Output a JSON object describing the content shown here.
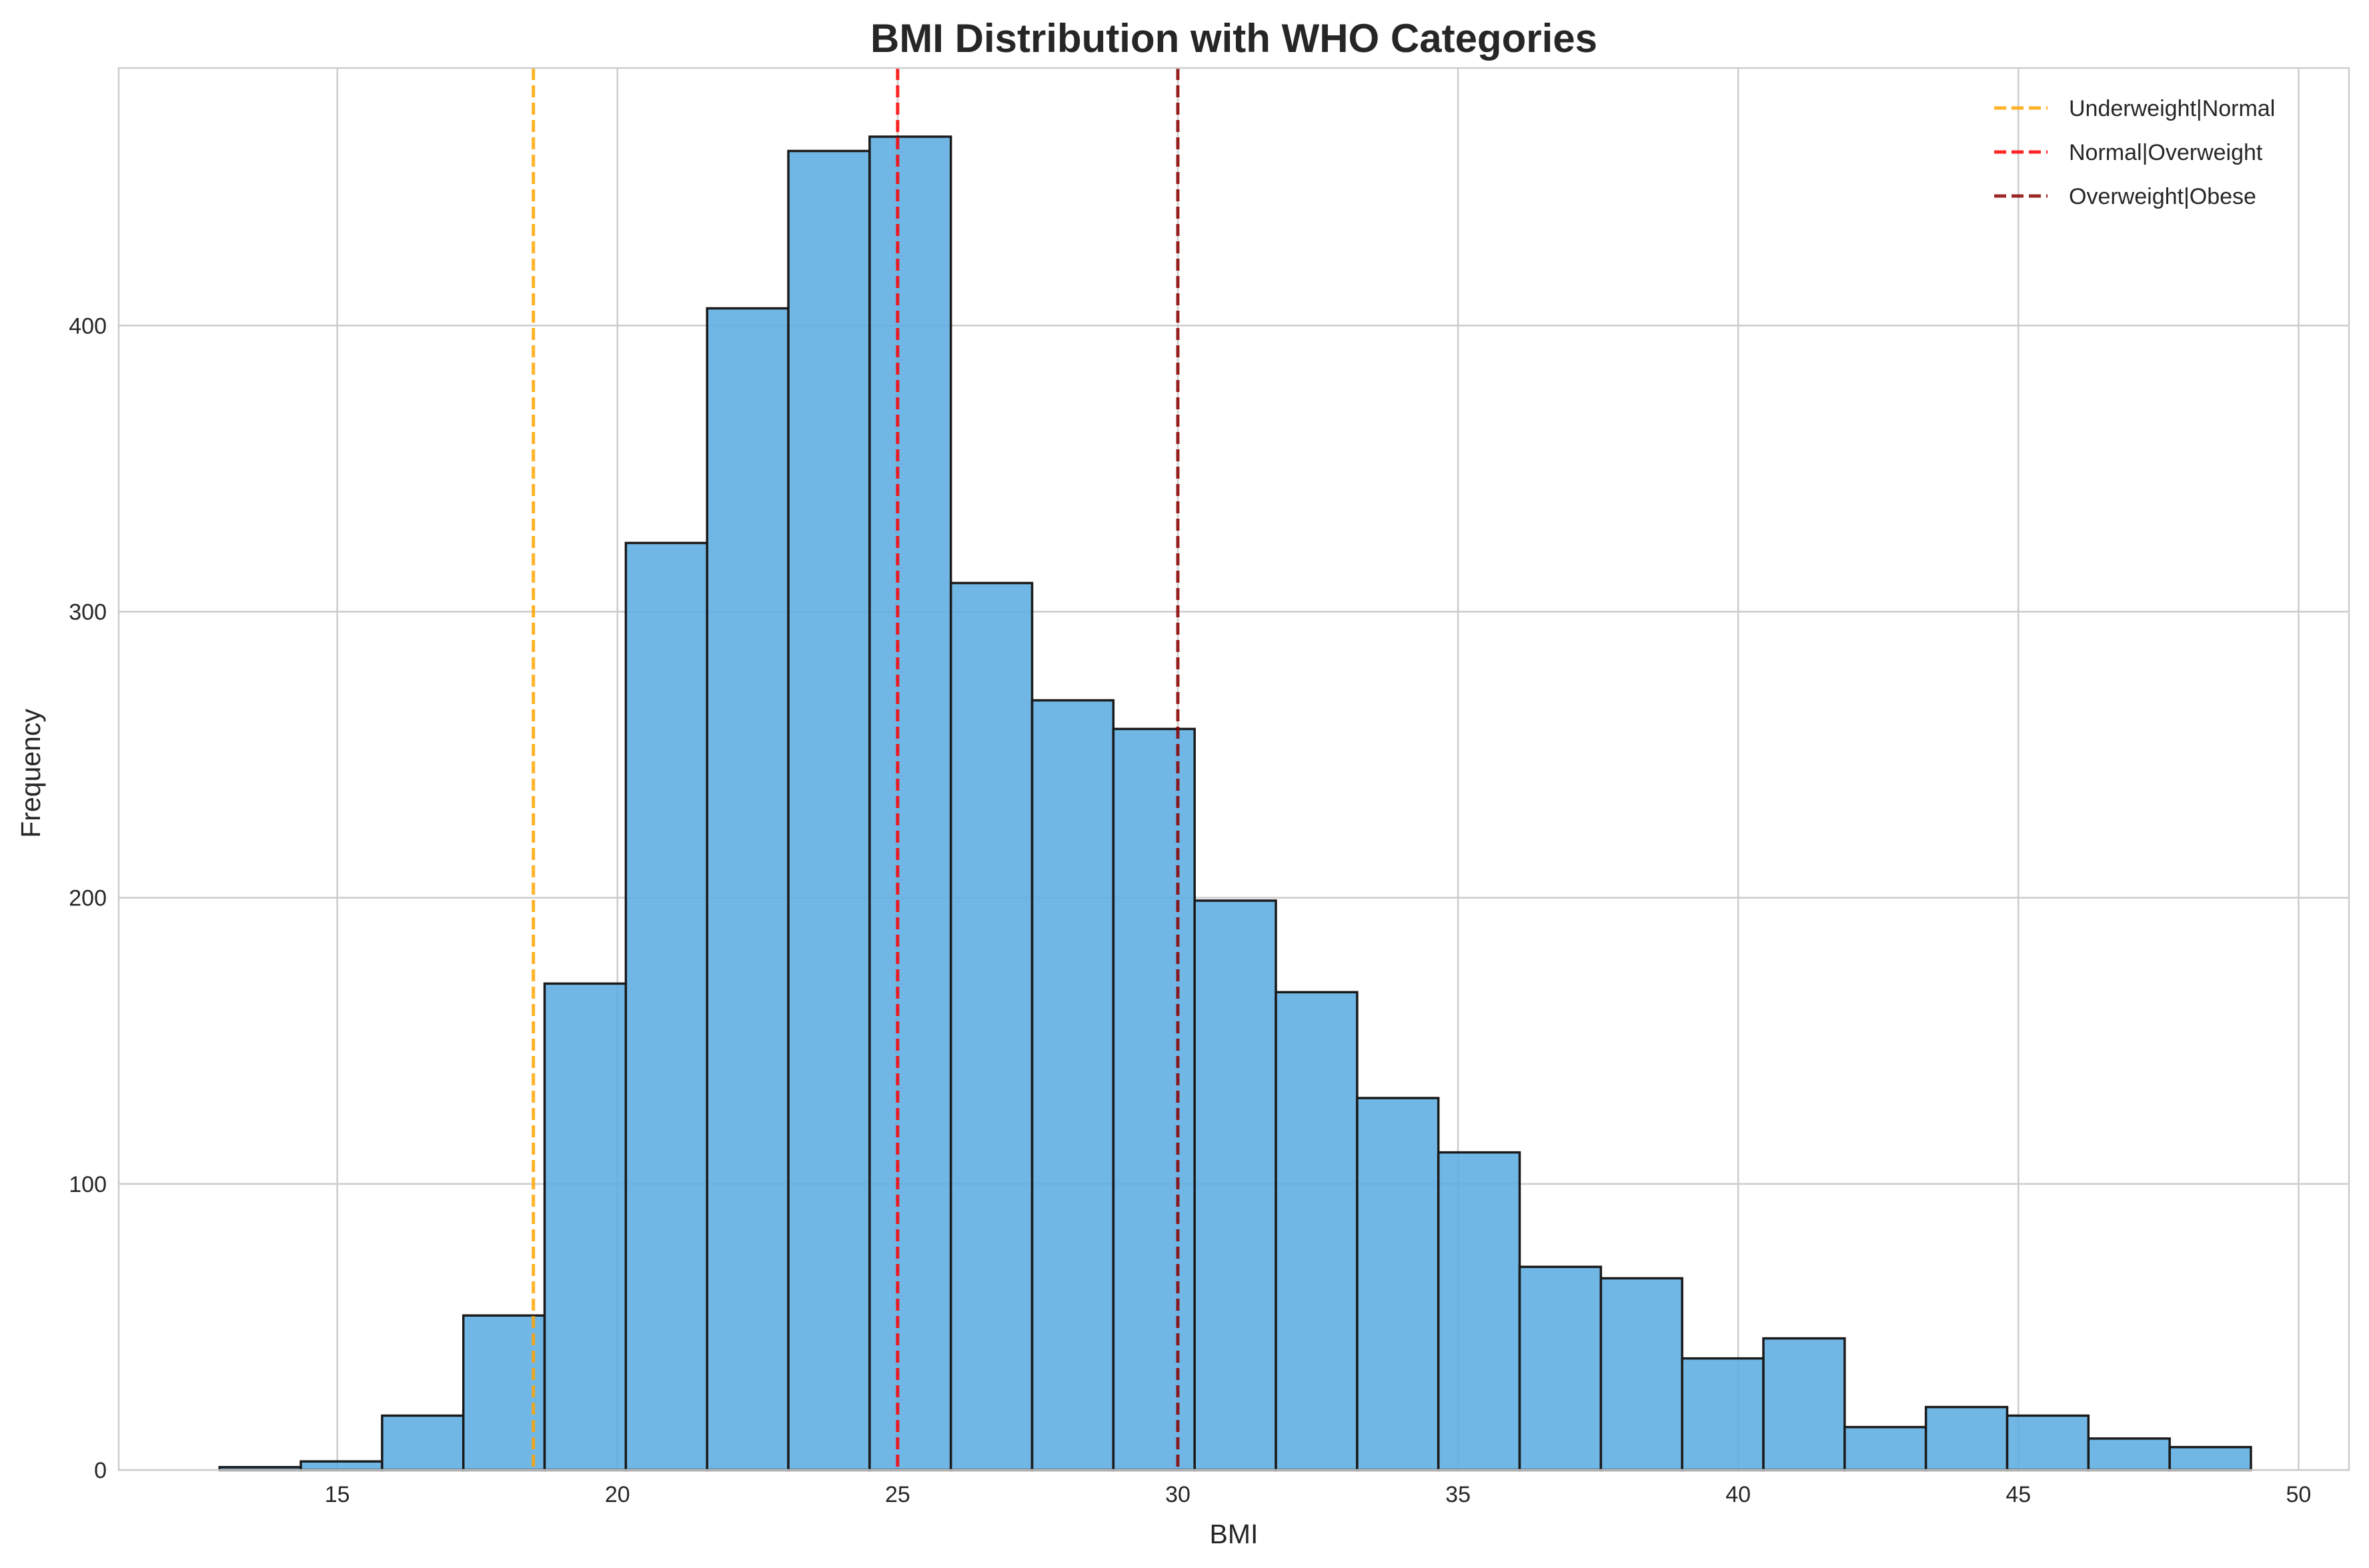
{
  "chart_data": {
    "type": "bar",
    "title": "BMI Distribution with WHO Categories",
    "xlabel": "BMI",
    "ylabel": "Frequency",
    "xlim": [
      11.1,
      50.9
    ],
    "ylim": [
      0,
      490
    ],
    "xticks": [
      15,
      20,
      25,
      30,
      35,
      40,
      45,
      50
    ],
    "yticks": [
      0,
      100,
      200,
      300,
      400
    ],
    "grid": true,
    "legend_position": "top-right",
    "bar_color": "#5DADE2",
    "edge_color": "#1a1a1a",
    "bins": [
      {
        "x0": 12.9,
        "x1": 14.35,
        "count": 1
      },
      {
        "x0": 14.35,
        "x1": 15.8,
        "count": 3
      },
      {
        "x0": 15.8,
        "x1": 17.25,
        "count": 19
      },
      {
        "x0": 17.25,
        "x1": 18.7,
        "count": 54
      },
      {
        "x0": 18.7,
        "x1": 20.15,
        "count": 170
      },
      {
        "x0": 20.15,
        "x1": 21.6,
        "count": 324
      },
      {
        "x0": 21.6,
        "x1": 23.05,
        "count": 406
      },
      {
        "x0": 23.05,
        "x1": 24.5,
        "count": 461
      },
      {
        "x0": 24.5,
        "x1": 25.95,
        "count": 466
      },
      {
        "x0": 25.95,
        "x1": 27.4,
        "count": 310
      },
      {
        "x0": 27.4,
        "x1": 28.85,
        "count": 269
      },
      {
        "x0": 28.85,
        "x1": 30.3,
        "count": 259
      },
      {
        "x0": 30.3,
        "x1": 31.75,
        "count": 199
      },
      {
        "x0": 31.75,
        "x1": 33.2,
        "count": 167
      },
      {
        "x0": 33.2,
        "x1": 34.65,
        "count": 130
      },
      {
        "x0": 34.65,
        "x1": 36.1,
        "count": 111
      },
      {
        "x0": 36.1,
        "x1": 37.55,
        "count": 71
      },
      {
        "x0": 37.55,
        "x1": 39.0,
        "count": 67
      },
      {
        "x0": 39.0,
        "x1": 40.45,
        "count": 39
      },
      {
        "x0": 40.45,
        "x1": 41.9,
        "count": 46
      },
      {
        "x0": 41.9,
        "x1": 43.35,
        "count": 15
      },
      {
        "x0": 43.35,
        "x1": 44.8,
        "count": 22
      },
      {
        "x0": 44.8,
        "x1": 46.25,
        "count": 19
      },
      {
        "x0": 46.25,
        "x1": 47.7,
        "count": 11
      },
      {
        "x0": 47.7,
        "x1": 49.15,
        "count": 8
      }
    ],
    "reference_lines": [
      {
        "name": "Underweight|Normal",
        "x": 18.5,
        "color": "#FFA500"
      },
      {
        "name": "Normal|Overweight",
        "x": 25,
        "color": "#FF0000"
      },
      {
        "name": "Overweight|Obese",
        "x": 30,
        "color": "#8B0000"
      }
    ]
  }
}
